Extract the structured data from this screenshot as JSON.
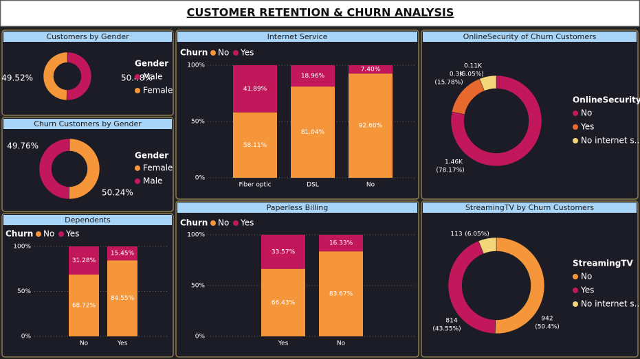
{
  "header": {
    "title": "CUSTOMER RETENTION & CHURN ANALYSIS"
  },
  "chart_data": [
    {
      "type": "pie",
      "title": "Customers by Gender",
      "legend_title": "Gender",
      "categories": [
        "Male",
        "Female"
      ],
      "values": [
        50.48,
        49.52
      ],
      "value_labels": [
        "50.48%",
        "49.52%"
      ],
      "colors": [
        "#c2185b",
        "#f5963a"
      ]
    },
    {
      "type": "pie",
      "title": "Churn Customers by Gender",
      "legend_title": "Gender",
      "categories": [
        "Female",
        "Male"
      ],
      "values": [
        50.24,
        49.76
      ],
      "value_labels": [
        "50.24%",
        "49.76%"
      ],
      "colors": [
        "#f5963a",
        "#c2185b"
      ]
    },
    {
      "type": "bar",
      "title": "Dependents",
      "legend_title": "Churn",
      "categories": [
        "No",
        "Yes"
      ],
      "series": [
        {
          "name": "No",
          "color": "#f5963a",
          "values": [
            68.72,
            84.55
          ],
          "value_labels": [
            "68.72%",
            "84.55%"
          ]
        },
        {
          "name": "Yes",
          "color": "#c2185b",
          "values": [
            31.28,
            15.45
          ],
          "value_labels": [
            "31.28%",
            "15.45%"
          ]
        }
      ],
      "ylim": [
        0,
        100
      ],
      "yticks": [
        {
          "value": 0,
          "label": "0%"
        },
        {
          "value": 50,
          "label": "50%"
        },
        {
          "value": 100,
          "label": "100%"
        }
      ],
      "grid": true
    },
    {
      "type": "bar",
      "title": "Internet Service",
      "legend_title": "Churn",
      "categories": [
        "Fiber optic",
        "DSL",
        "No"
      ],
      "series": [
        {
          "name": "No",
          "color": "#f5963a",
          "values": [
            58.11,
            81.04,
            92.6
          ],
          "value_labels": [
            "58.11%",
            "81.04%",
            "92.60%"
          ]
        },
        {
          "name": "Yes",
          "color": "#c2185b",
          "values": [
            41.89,
            18.96,
            7.4
          ],
          "value_labels": [
            "41.89%",
            "18.96%",
            "7.40%"
          ]
        }
      ],
      "ylim": [
        0,
        100
      ],
      "yticks": [
        {
          "value": 0,
          "label": "0%"
        },
        {
          "value": 50,
          "label": "50%"
        },
        {
          "value": 100,
          "label": "100%"
        }
      ],
      "grid": true
    },
    {
      "type": "bar",
      "title": "Paperless Billing",
      "legend_title": "Churn",
      "categories": [
        "Yes",
        "No"
      ],
      "series": [
        {
          "name": "No",
          "color": "#f5963a",
          "values": [
            66.43,
            83.67
          ],
          "value_labels": [
            "66.43%",
            "83.67%"
          ]
        },
        {
          "name": "Yes",
          "color": "#c2185b",
          "values": [
            33.57,
            16.33
          ],
          "value_labels": [
            "33.57%",
            "16.33%"
          ]
        }
      ],
      "ylim": [
        0,
        100
      ],
      "yticks": [
        {
          "value": 0,
          "label": "0%"
        },
        {
          "value": 50,
          "label": "50%"
        },
        {
          "value": 100,
          "label": "100%"
        }
      ],
      "grid": true
    },
    {
      "type": "pie",
      "title": "OnlineSecurity of Churn Customers",
      "legend_title": "OnlineSecurity",
      "categories": [
        "No",
        "Yes",
        "No internet s..."
      ],
      "values": [
        78.17,
        15.78,
        6.05
      ],
      "value_labels": [
        "(78.17%)",
        "(15.78%)",
        "(6.05%)"
      ],
      "count_labels": [
        "1.46K",
        "0.3K",
        "0.11K"
      ],
      "colors": [
        "#c2185b",
        "#e8692e",
        "#f3d57a"
      ]
    },
    {
      "type": "pie",
      "title": "StreamingTV by Churn Customers",
      "legend_title": "StreamingTV",
      "categories": [
        "No",
        "Yes",
        "No internet s..."
      ],
      "values": [
        50.4,
        43.55,
        6.05
      ],
      "value_labels": [
        "(50.4%)",
        "(43.55%)",
        "(6.05%)"
      ],
      "count_labels": [
        "942",
        "814",
        "113"
      ],
      "colors": [
        "#f5963a",
        "#c2185b",
        "#f3d57a"
      ]
    }
  ]
}
